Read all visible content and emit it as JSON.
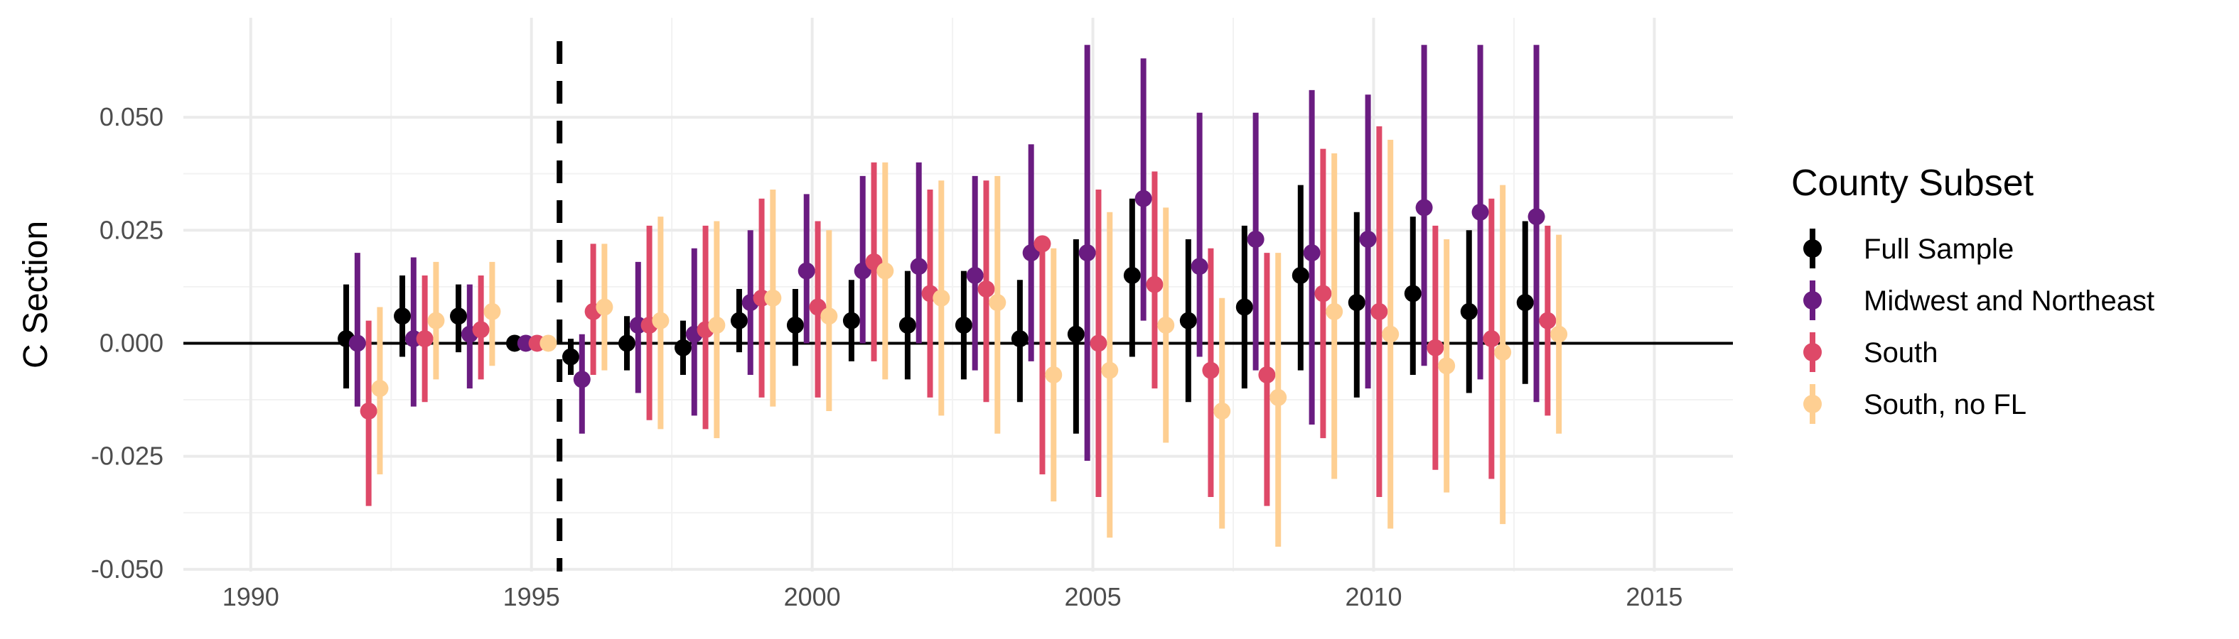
{
  "chart_data": {
    "type": "scatter",
    "subtype": "point-range (coefficient plot)",
    "title": "",
    "xlabel": "",
    "ylabel": "C Section",
    "xlim": [
      1988.8,
      2016.4
    ],
    "ylim": [
      -0.0505,
      0.072
    ],
    "x_ticks": [
      1990,
      1995,
      2000,
      2005,
      2010,
      2015
    ],
    "x_tick_labels": [
      "1990",
      "1995",
      "2000",
      "2005",
      "2010",
      "2015"
    ],
    "y_ticks": [
      -0.05,
      -0.025,
      0.0,
      0.025,
      0.05
    ],
    "y_tick_labels": [
      "-0.050",
      "-0.025",
      "0.000",
      "0.025",
      "0.050"
    ],
    "grid": true,
    "reference_lines": {
      "horizontal_zero": true,
      "vertical_dashed_x": 1995.5
    },
    "dodge_offsets": [
      -0.3,
      -0.1,
      0.1,
      0.3
    ],
    "legend": {
      "title": "County Subset",
      "position": "right"
    },
    "x": [
      1992,
      1993,
      1994,
      1995,
      1996,
      1997,
      1998,
      1999,
      2000,
      2001,
      2002,
      2003,
      2004,
      2005,
      2006,
      2007,
      2008,
      2009,
      2010,
      2011,
      2012,
      2013
    ],
    "series": [
      {
        "name": "Full Sample",
        "color": "#000000",
        "estimate": [
          0.001,
          0.006,
          0.006,
          0.0,
          -0.003,
          0.0,
          -0.001,
          0.005,
          0.004,
          0.005,
          0.004,
          0.004,
          0.001,
          0.002,
          0.015,
          0.005,
          0.008,
          0.015,
          0.009,
          0.011,
          0.007,
          0.009
        ],
        "lower": [
          -0.01,
          -0.003,
          -0.002,
          0.0,
          -0.007,
          -0.006,
          -0.007,
          -0.002,
          -0.005,
          -0.004,
          -0.008,
          -0.008,
          -0.013,
          -0.02,
          -0.003,
          -0.013,
          -0.01,
          -0.006,
          -0.012,
          -0.007,
          -0.011,
          -0.009
        ],
        "upper": [
          0.013,
          0.015,
          0.013,
          0.0,
          0.001,
          0.006,
          0.005,
          0.012,
          0.012,
          0.014,
          0.016,
          0.016,
          0.014,
          0.023,
          0.032,
          0.023,
          0.026,
          0.035,
          0.029,
          0.028,
          0.025,
          0.027
        ]
      },
      {
        "name": "Midwest and Northeast",
        "color": "#6a1c81",
        "estimate": [
          0.0,
          0.001,
          0.002,
          0.0,
          -0.008,
          0.004,
          0.002,
          0.009,
          0.016,
          0.016,
          0.017,
          0.015,
          0.02,
          0.02,
          0.032,
          0.017,
          0.023,
          0.02,
          0.023,
          0.03,
          0.029,
          0.028
        ],
        "lower": [
          -0.014,
          -0.014,
          -0.01,
          0.0,
          -0.02,
          -0.011,
          -0.016,
          -0.007,
          0.0,
          0.0,
          0.0,
          -0.006,
          -0.004,
          -0.026,
          0.005,
          -0.003,
          -0.006,
          -0.018,
          -0.01,
          -0.005,
          -0.008,
          -0.013
        ],
        "upper": [
          0.02,
          0.019,
          0.013,
          0.0,
          0.002,
          0.018,
          0.021,
          0.025,
          0.033,
          0.037,
          0.04,
          0.037,
          0.044,
          0.066,
          0.063,
          0.051,
          0.051,
          0.056,
          0.055,
          0.066,
          0.066,
          0.066
        ]
      },
      {
        "name": "South",
        "color": "#de4968",
        "estimate": [
          -0.015,
          0.001,
          0.003,
          0.0,
          0.007,
          0.004,
          0.003,
          0.01,
          0.008,
          0.018,
          0.011,
          0.012,
          0.022,
          0.0,
          0.013,
          -0.006,
          -0.007,
          0.011,
          0.007,
          -0.001,
          0.001,
          0.005
        ],
        "lower": [
          -0.036,
          -0.013,
          -0.008,
          0.0,
          -0.007,
          -0.017,
          -0.019,
          -0.012,
          -0.012,
          -0.004,
          -0.012,
          -0.013,
          -0.029,
          -0.034,
          -0.01,
          -0.034,
          -0.036,
          -0.021,
          -0.034,
          -0.028,
          -0.03,
          -0.016
        ],
        "upper": [
          0.005,
          0.015,
          0.015,
          0.0,
          0.022,
          0.026,
          0.026,
          0.032,
          0.027,
          0.04,
          0.034,
          0.036,
          0.022,
          0.034,
          0.038,
          0.021,
          0.02,
          0.043,
          0.048,
          0.026,
          0.032,
          0.026
        ]
      },
      {
        "name": "South, no FL",
        "color": "#fecf92",
        "estimate": [
          -0.01,
          0.005,
          0.007,
          0.0,
          0.008,
          0.005,
          0.004,
          0.01,
          0.006,
          0.016,
          0.01,
          0.009,
          -0.007,
          -0.006,
          0.004,
          -0.015,
          -0.012,
          0.007,
          0.002,
          -0.005,
          -0.002,
          0.002
        ],
        "lower": [
          -0.029,
          -0.008,
          -0.005,
          0.0,
          -0.006,
          -0.019,
          -0.021,
          -0.014,
          -0.015,
          -0.008,
          -0.016,
          -0.02,
          -0.035,
          -0.043,
          -0.022,
          -0.041,
          -0.045,
          -0.03,
          -0.041,
          -0.033,
          -0.04,
          -0.02
        ],
        "upper": [
          0.008,
          0.018,
          0.018,
          0.0,
          0.022,
          0.028,
          0.027,
          0.034,
          0.025,
          0.04,
          0.036,
          0.037,
          0.021,
          0.029,
          0.03,
          0.01,
          0.02,
          0.042,
          0.045,
          0.023,
          0.035,
          0.024
        ]
      }
    ]
  }
}
